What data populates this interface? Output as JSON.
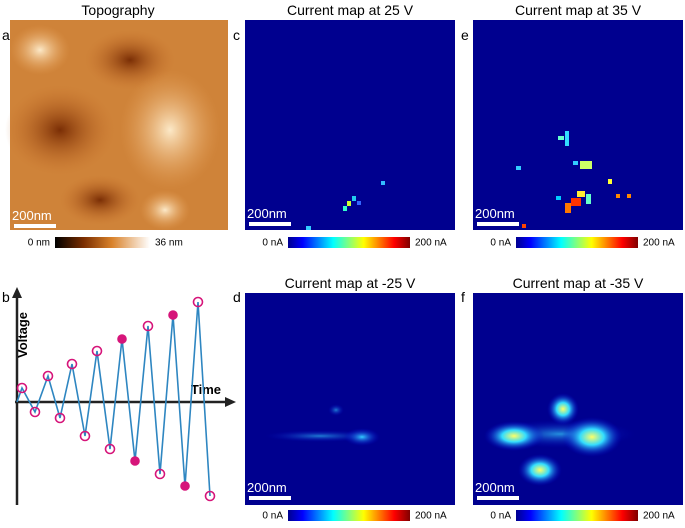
{
  "panels": [
    {
      "letter": "a",
      "title": "Topography",
      "scale_bar": "200nm",
      "colorbar": {
        "min": "0 nm",
        "max": "36 nm"
      }
    },
    {
      "letter": "b",
      "x_label": "Time",
      "y_label": "Voltage"
    },
    {
      "letter": "c",
      "title": "Current map at 25 V",
      "scale_bar": "200nm",
      "colorbar": {
        "min": "0 nA",
        "max": "200 nA"
      }
    },
    {
      "letter": "d",
      "title": "Current map at -25 V",
      "scale_bar": "200nm",
      "colorbar": {
        "min": "0 nA",
        "max": "200 nA"
      }
    },
    {
      "letter": "e",
      "title": "Current map at 35 V",
      "scale_bar": "200nm",
      "colorbar": {
        "min": "0 nA",
        "max": "200 nA"
      }
    },
    {
      "letter": "f",
      "title": "Current map at -35 V",
      "scale_bar": "200nm",
      "colorbar": {
        "min": "0 nA",
        "max": "200 nA"
      }
    }
  ]
}
